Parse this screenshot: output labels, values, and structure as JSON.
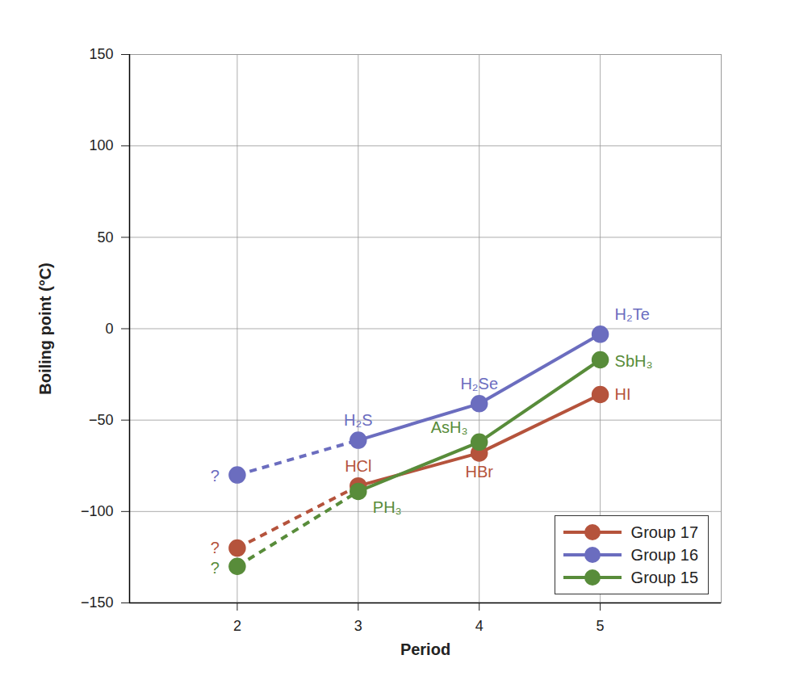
{
  "chart_data": {
    "type": "line",
    "x_label": "Period",
    "y_label": "Boiling point (°C)",
    "x": [
      2,
      3,
      4,
      5
    ],
    "xlim": [
      1.11,
      6
    ],
    "xticks": [
      2,
      3,
      4,
      5
    ],
    "ylim": [
      -150,
      150
    ],
    "yticks": [
      -150,
      -100,
      -50,
      0,
      50,
      100,
      150
    ],
    "grid": true,
    "legend": "lower right",
    "marker": "circle",
    "series": [
      {
        "name": "Group 17",
        "color": "#b5533c",
        "values": [
          -120,
          -86,
          -68,
          -36
        ],
        "labels": [
          "?",
          "HCl",
          "HBr",
          "HI"
        ],
        "line_style": [
          "dashed",
          "solid",
          "solid"
        ]
      },
      {
        "name": "Group 16",
        "color": "#6b6dbf",
        "values": [
          -80,
          -61,
          -41,
          -3
        ],
        "labels": [
          "?",
          "H₂S",
          "H₂Se",
          "H₂Te"
        ],
        "line_style": [
          "dashed",
          "solid",
          "solid"
        ]
      },
      {
        "name": "Group 15",
        "color": "#588c3a",
        "values": [
          -130,
          -89,
          -62,
          -17
        ],
        "labels": [
          "?",
          "PH₃",
          "AsH₃",
          "SbH₃"
        ],
        "line_style": [
          "dashed",
          "solid",
          "solid"
        ]
      }
    ]
  }
}
